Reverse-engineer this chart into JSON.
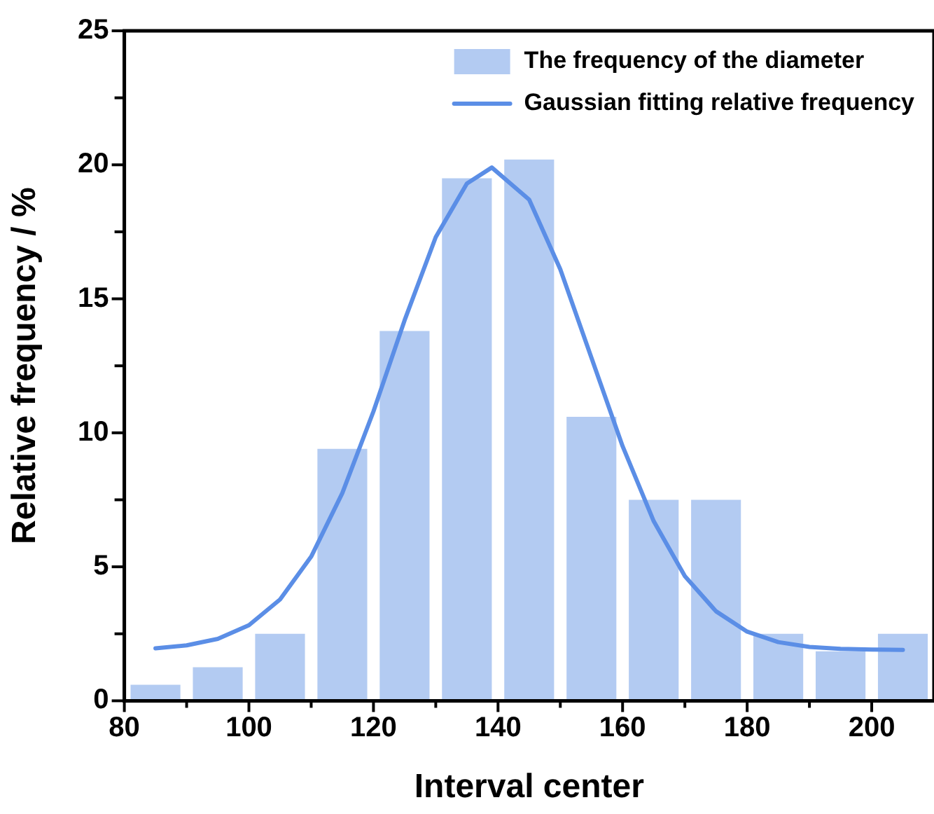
{
  "chart_data": {
    "type": "bar",
    "xlabel": "Interval center",
    "ylabel": "Relative frequency / %",
    "x": [
      85,
      95,
      105,
      115,
      125,
      135,
      145,
      155,
      165,
      175,
      185,
      195,
      205
    ],
    "series": [
      {
        "name": "The frequency of the diameter",
        "color": "#b3cbf2",
        "values": [
          0.6,
          1.25,
          2.5,
          9.4,
          13.8,
          19.5,
          20.2,
          10.6,
          7.5,
          7.5,
          2.5,
          1.85,
          2.5
        ]
      },
      {
        "name": "Gaussian fitting relative frequency",
        "type": "line",
        "color": "#5b8ee6",
        "x": [
          85,
          90,
          95,
          100,
          105,
          110,
          115,
          120,
          125,
          130,
          135,
          139,
          145,
          150,
          155,
          160,
          165,
          170,
          175,
          180,
          185,
          190,
          195,
          200,
          205
        ],
        "values": [
          1.96,
          2.07,
          2.31,
          2.82,
          3.78,
          5.38,
          7.75,
          10.8,
          14.2,
          17.3,
          19.3,
          19.9,
          18.7,
          16.1,
          12.8,
          9.5,
          6.7,
          4.65,
          3.34,
          2.58,
          2.19,
          2.01,
          1.94,
          1.91,
          1.9
        ]
      }
    ],
    "xlim": [
      80,
      210
    ],
    "xticks": [
      80,
      {
        "value": 90,
        "label": null
      },
      100,
      {
        "value": 110,
        "label": null
      },
      120,
      {
        "value": 130,
        "label": null
      },
      140,
      {
        "value": 150,
        "label": null
      },
      160,
      {
        "value": 170,
        "label": null
      },
      180,
      {
        "value": 190,
        "label": null
      },
      200
    ],
    "ylim": [
      0,
      25
    ],
    "yticks": [
      0,
      {
        "value": 2.5,
        "label": null
      },
      5,
      {
        "value": 7.5,
        "label": null
      },
      10,
      {
        "value": 12.5,
        "label": null
      },
      15,
      {
        "value": 17.5,
        "label": null
      },
      20,
      {
        "value": 22.5,
        "label": null
      },
      25
    ],
    "grid": false,
    "legend": "top right",
    "marker": "none",
    "line_style": "solid"
  }
}
